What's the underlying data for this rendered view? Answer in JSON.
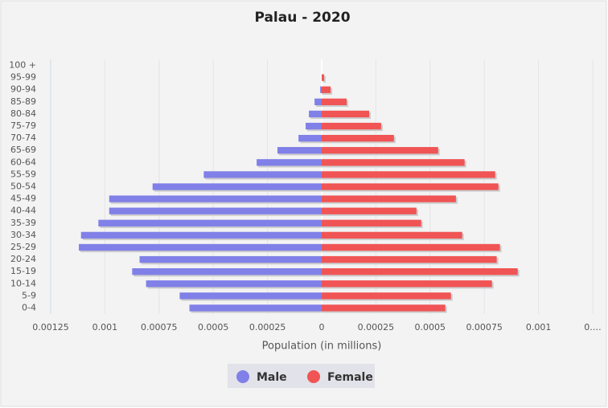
{
  "chart_data": {
    "type": "pyramid",
    "title": "Palau - 2020",
    "x_label": "Population (in millions)",
    "categories": [
      "0-4",
      "5-9",
      "10-14",
      "15-19",
      "20-24",
      "25-29",
      "30-34",
      "35-39",
      "40-44",
      "45-49",
      "50-54",
      "55-59",
      "60-64",
      "65-69",
      "70-74",
      "75-79",
      "80-84",
      "85-89",
      "90-94",
      "95-99",
      "100 +"
    ],
    "series": [
      {
        "name": "Male",
        "color": "#8080e8",
        "side": "left",
        "values": [
          0.00061,
          0.000655,
          0.00081,
          0.000874,
          0.00084,
          0.00112,
          0.00111,
          0.00103,
          0.00098,
          0.00098,
          0.00078,
          0.000544,
          0.0003,
          0.000204,
          0.000107,
          7.4e-05,
          5.9e-05,
          3.3e-05,
          7e-06,
          0,
          0
        ]
      },
      {
        "name": "Female",
        "color": "#f05454",
        "side": "right",
        "values": [
          0.00057,
          0.000596,
          0.000785,
          0.000904,
          0.000807,
          0.000822,
          0.000648,
          0.000459,
          0.000437,
          0.000619,
          0.000815,
          0.0008,
          0.000659,
          0.000537,
          0.000333,
          0.000274,
          0.000219,
          0.000115,
          4.1e-05,
          1.1e-05,
          0
        ]
      }
    ],
    "xlim": [
      -0.00125,
      0.00125
    ],
    "xticks": [
      {
        "value": -0.00125,
        "label": "0.00125"
      },
      {
        "value": -0.001,
        "label": "0.001"
      },
      {
        "value": -0.00075,
        "label": "0.00075"
      },
      {
        "value": -0.0005,
        "label": "0.0005"
      },
      {
        "value": -0.00025,
        "label": "0.00025"
      },
      0,
      0.00025,
      0.0005,
      0.00075,
      0.001,
      {
        "value": 0.00125,
        "label": "0.…"
      }
    ],
    "grid": true
  }
}
